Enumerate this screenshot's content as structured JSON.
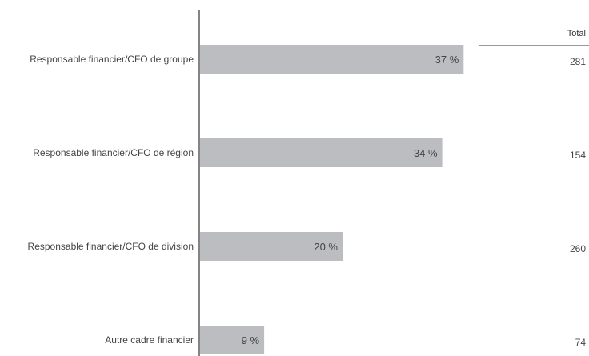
{
  "chart_data": {
    "type": "bar",
    "orientation": "horizontal",
    "categories": [
      "Responsable financier/CFO de groupe",
      "Responsable financier/CFO de région",
      "Responsable financier/CFO de division",
      "Autre cadre financier"
    ],
    "values": [
      37,
      34,
      20,
      9
    ],
    "value_labels": [
      "37 %",
      "34 %",
      "20 %",
      "9 %"
    ],
    "unit": "%",
    "bar_color": "#bcbdc0",
    "xlim": [
      0,
      45
    ],
    "grid": false,
    "totals_header": "Total",
    "totals": [
      "281",
      "154",
      "260",
      "74"
    ]
  }
}
